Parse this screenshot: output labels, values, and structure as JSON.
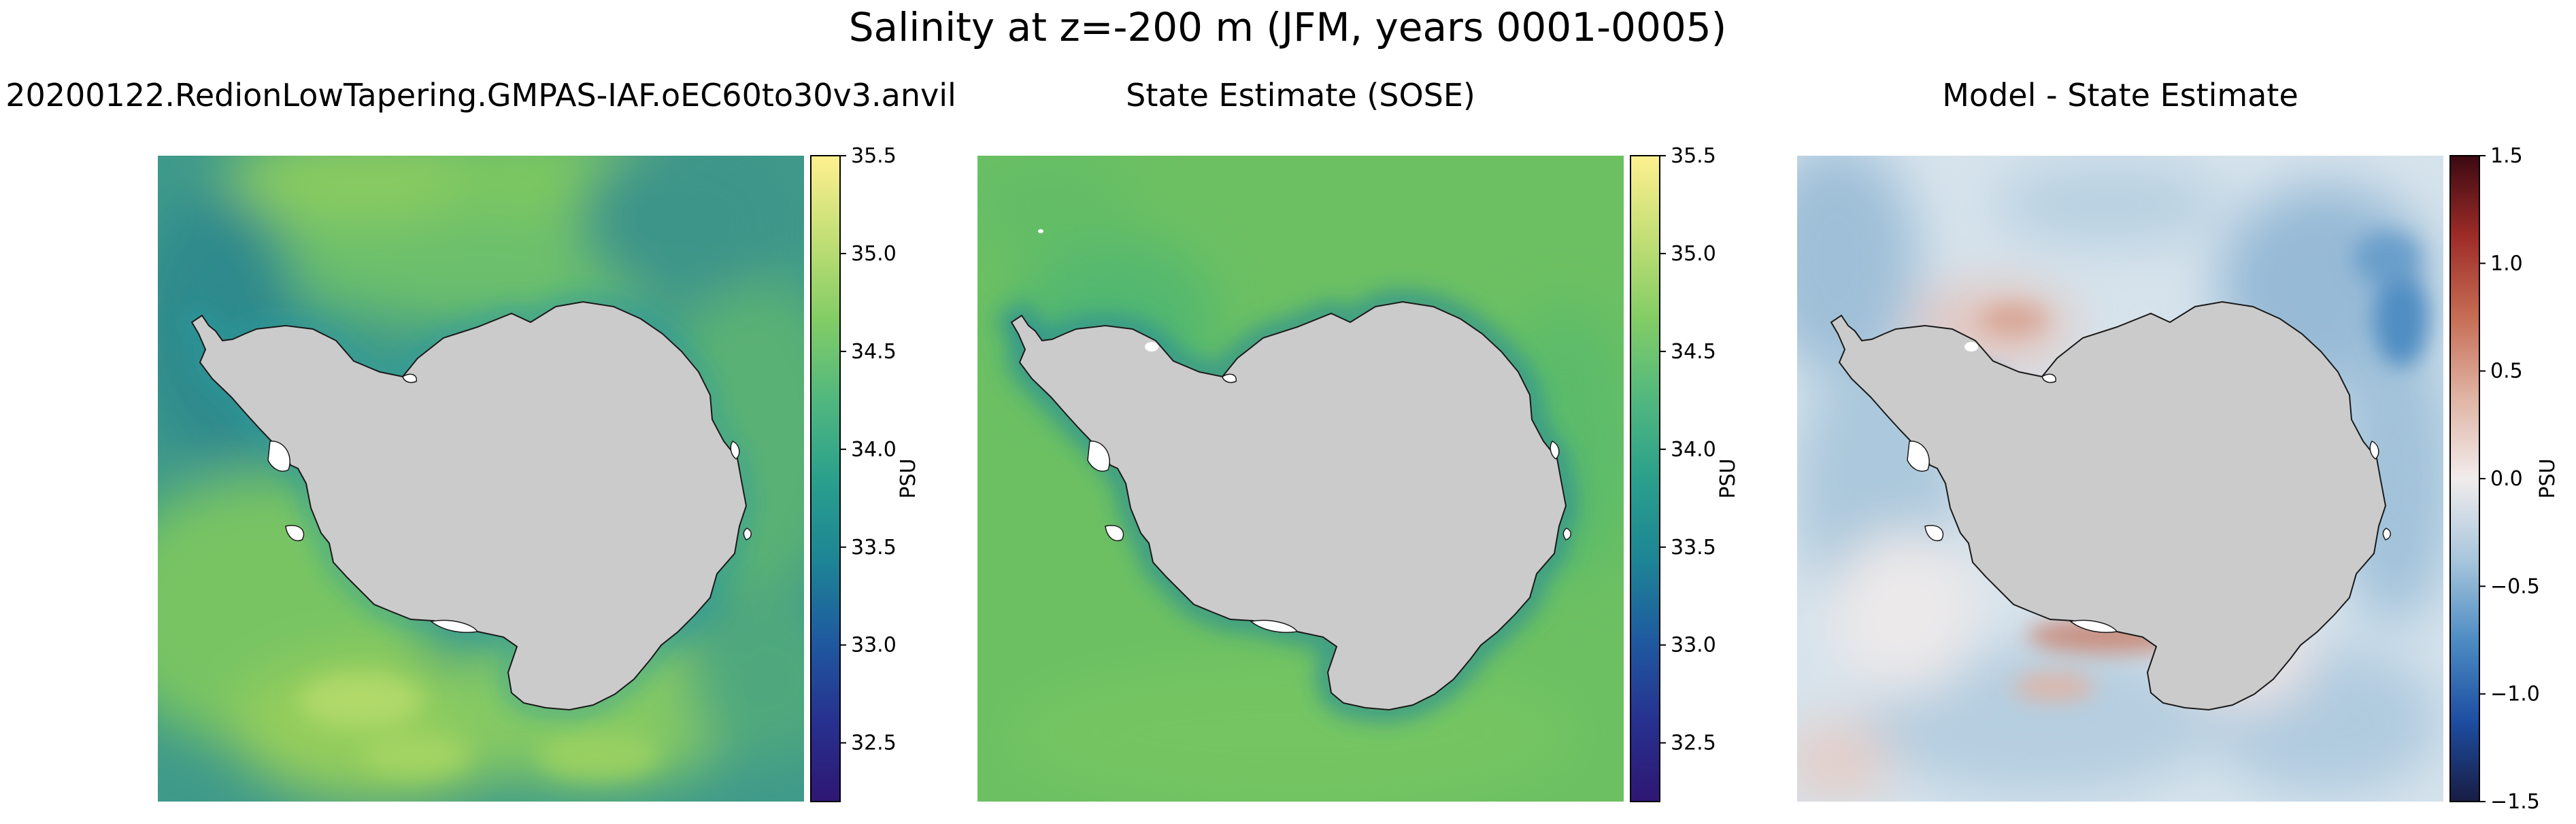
{
  "figure": {
    "suptitle": "Salinity at z=-200 m (JFM, years 0001-0005)"
  },
  "colors": {
    "land": "#cbcbcb",
    "coastline": "#1a1a1a",
    "colorbar_outline": "#000000",
    "viridis_stops": [
      "#2f1673",
      "#27318f",
      "#1f5aa0",
      "#1d8595",
      "#2aa08c",
      "#52b87e",
      "#84cd65",
      "#c4df76",
      "#fff08f"
    ],
    "balance_stops": [
      "#181c43",
      "#1d4ea2",
      "#4e8cc3",
      "#a8c6dc",
      "#f1ecec",
      "#e0b4a4",
      "#c66d55",
      "#9e2c27",
      "#3c0912"
    ]
  },
  "chart_data": [
    {
      "type": "heatmap",
      "title": "20200122.RedionLowTapering.GMPAS-IAF.oEC60to30v3.anvil",
      "colormap": "viridis-like (haline)",
      "clim": [
        32.2,
        35.5
      ],
      "colorbar": {
        "label": "PSU",
        "ticks": [
          32.5,
          33.0,
          33.5,
          34.0,
          34.5,
          35.0,
          35.5
        ],
        "tick_labels": [
          "32.5",
          "33.0",
          "33.5",
          "34.0",
          "34.5",
          "35.0",
          "35.5"
        ]
      },
      "field_summary": {
        "open_ocean_typical": 34.3,
        "northern_band_max": 34.9,
        "shelf_typical": 34.2,
        "under_ice_shelves": "masked (white)",
        "continent": "land (gray)"
      },
      "grid": false
    },
    {
      "type": "heatmap",
      "title": "State Estimate (SOSE)",
      "colormap": "viridis-like (haline)",
      "clim": [
        32.2,
        35.5
      ],
      "colorbar": {
        "label": "PSU",
        "ticks": [
          32.5,
          33.0,
          33.5,
          34.0,
          34.5,
          35.0,
          35.5
        ],
        "tick_labels": [
          "32.5",
          "33.0",
          "33.5",
          "34.0",
          "34.5",
          "35.0",
          "35.5"
        ]
      },
      "field_summary": {
        "open_ocean_typical": 34.65,
        "northern_band_max": 34.7,
        "shelf_typical": 34.4,
        "under_ice_shelves": "masked (white)",
        "continent": "land (gray)"
      },
      "grid": false
    },
    {
      "type": "heatmap",
      "title": "Model - State Estimate",
      "colormap": "diverging (blue-white-red)",
      "clim": [
        -1.5,
        1.5
      ],
      "colorbar": {
        "label": "PSU",
        "ticks": [
          -1.5,
          -1.0,
          -0.5,
          0.0,
          0.5,
          1.0,
          1.5
        ],
        "tick_labels": [
          "−1.5",
          "−1.0",
          "−0.5",
          "0.0",
          "0.5",
          "1.0",
          "1.5"
        ]
      },
      "field_summary": {
        "open_ocean_typical": -0.25,
        "most_negative": -0.7,
        "most_positive": 0.45,
        "under_ice_shelves": "masked (white)",
        "continent": "land (gray)"
      },
      "grid": false
    }
  ]
}
